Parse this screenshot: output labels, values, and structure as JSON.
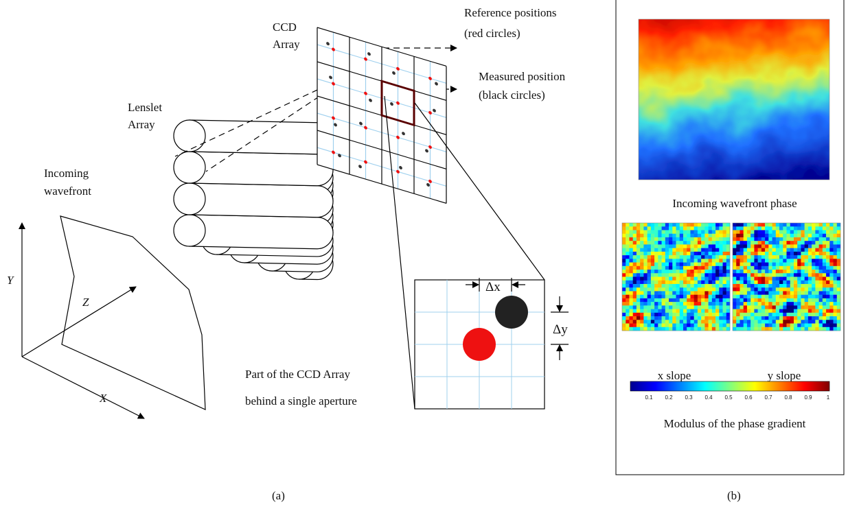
{
  "panel_a": {
    "ccd_array": [
      "CCD",
      "Array"
    ],
    "reference_positions": [
      "Reference positions",
      "(red circles)"
    ],
    "measured_positions": [
      "Measured position",
      "(black circles)"
    ],
    "lenslet_array": [
      "Lenslet",
      "Array"
    ],
    "incoming_wavefront": [
      "Incoming",
      "wavefront"
    ],
    "axes": {
      "y": "Y",
      "z": "Z",
      "x": "X"
    },
    "delta_x": "Δx",
    "delta_y": "Δy",
    "zoom_caption": [
      "Part of the CCD Array",
      "behind a single aperture"
    ],
    "caption": "(a)"
  },
  "panel_b": {
    "phase_caption": "Incoming wavefront phase",
    "x_slope": "x slope",
    "y_slope": "y slope",
    "colorbar_ticks": [
      "0.1",
      "0.2",
      "0.3",
      "0.4",
      "0.5",
      "0.6",
      "0.7",
      "0.8",
      "0.9",
      "1"
    ],
    "colorbar_caption": "Modulus of the phase gradient",
    "caption": "(b)"
  }
}
